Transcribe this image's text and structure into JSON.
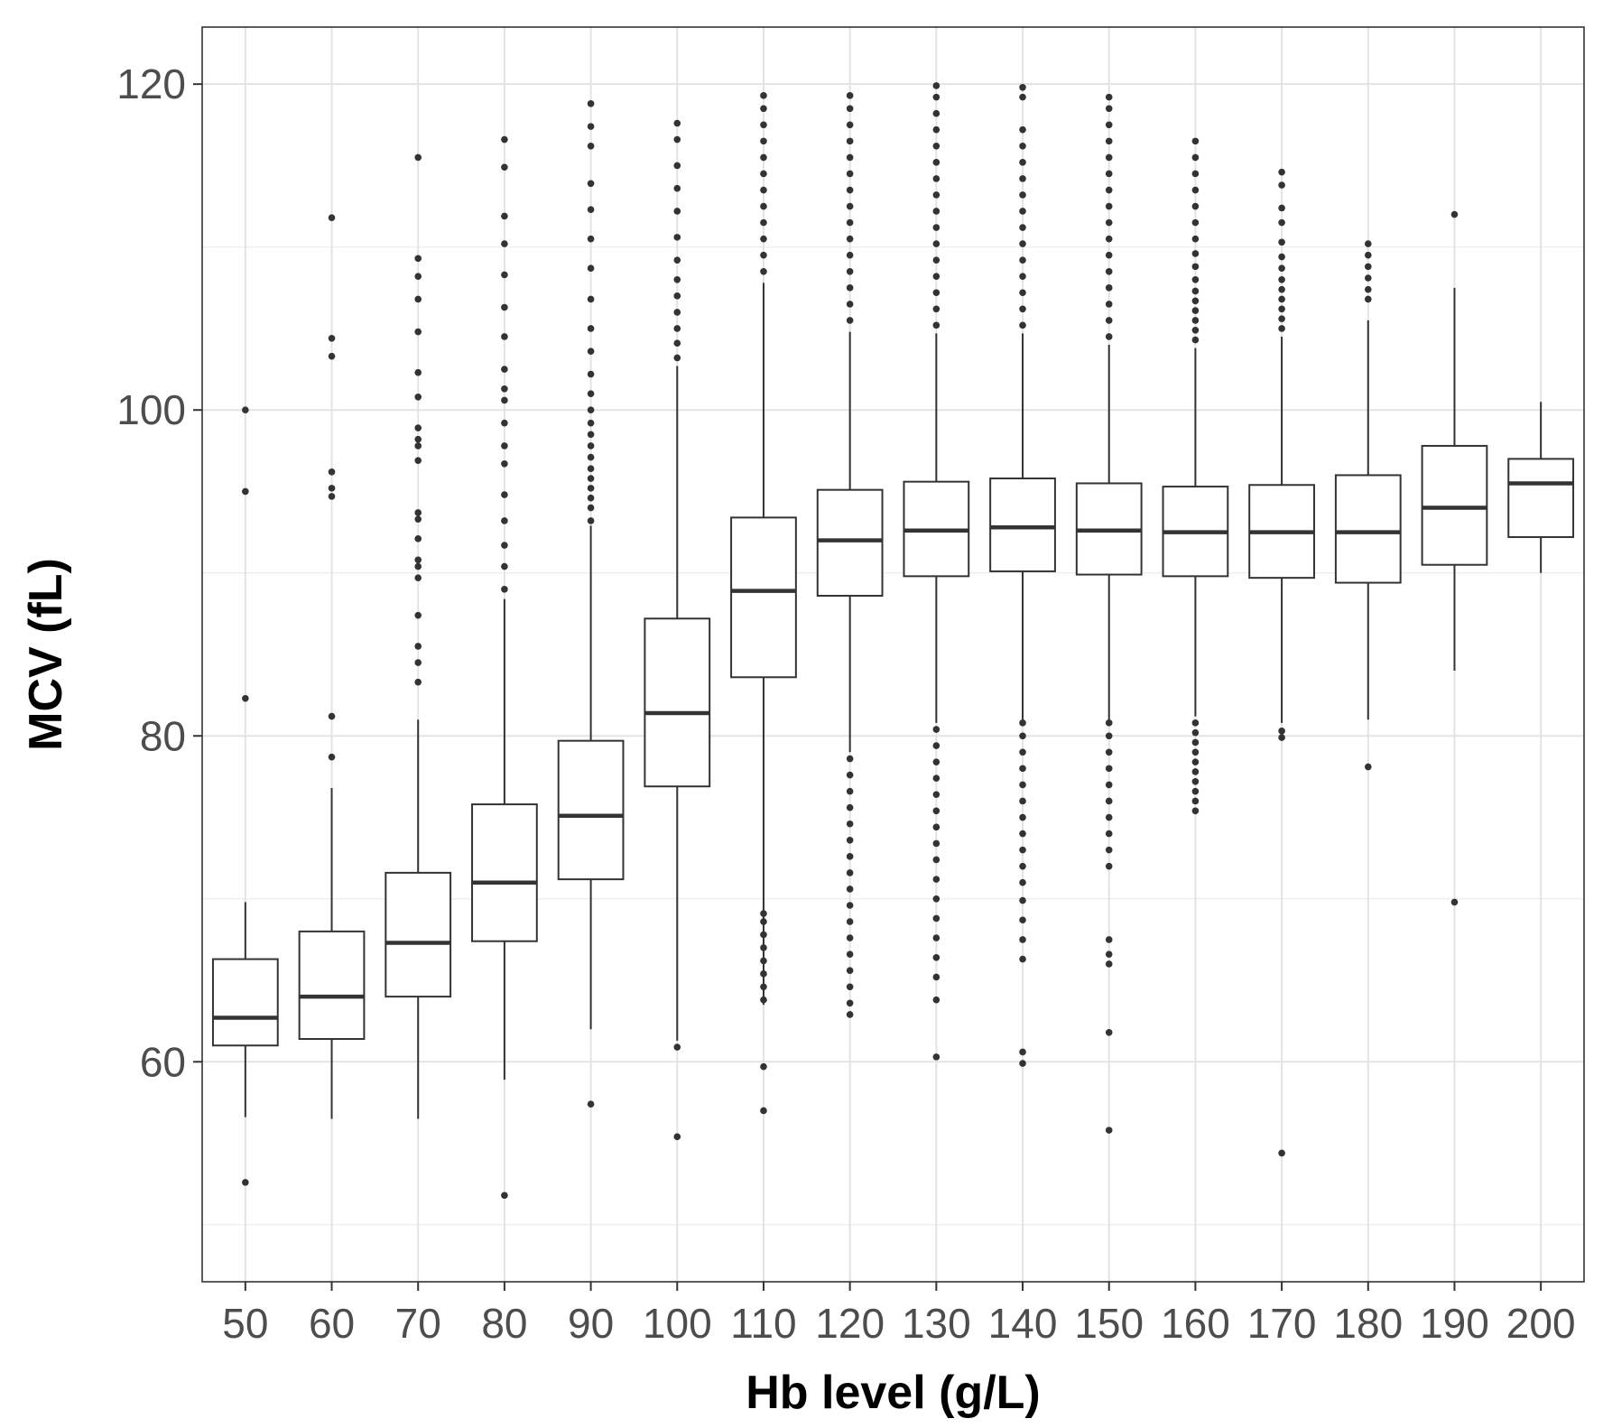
{
  "chart_data": {
    "type": "box",
    "xlabel": "Hb level (g/L)",
    "ylabel": "MCV (fL)",
    "ylim": [
      46.5,
      123.5
    ],
    "yticks": [
      60,
      80,
      100,
      120
    ],
    "grid": true,
    "categories": [
      "50",
      "60",
      "70",
      "80",
      "90",
      "100",
      "110",
      "120",
      "130",
      "140",
      "150",
      "160",
      "170",
      "180",
      "190",
      "200"
    ],
    "boxes": [
      {
        "category": "50",
        "whisker_low": 56.6,
        "q1": 61.0,
        "median": 62.7,
        "q3": 66.3,
        "whisker_high": 69.8,
        "outliers": [
          52.6,
          82.3,
          95.0,
          100.0
        ]
      },
      {
        "category": "60",
        "whisker_low": 56.5,
        "q1": 61.4,
        "median": 64.0,
        "q3": 68.0,
        "whisker_high": 76.8,
        "outliers": [
          78.7,
          81.2,
          94.7,
          95.2,
          96.2,
          103.3,
          104.4,
          111.8
        ]
      },
      {
        "category": "70",
        "whisker_low": 56.5,
        "q1": 64.0,
        "median": 67.3,
        "q3": 71.6,
        "whisker_high": 81.0,
        "outliers": [
          83.3,
          84.5,
          85.5,
          87.4,
          89.7,
          90.4,
          90.8,
          92.1,
          93.3,
          93.7,
          96.9,
          97.8,
          98.2,
          98.9,
          100.8,
          102.3,
          104.8,
          106.8,
          108.2,
          109.3,
          115.5
        ]
      },
      {
        "category": "80",
        "whisker_low": 58.9,
        "q1": 67.4,
        "median": 71.0,
        "q3": 75.8,
        "whisker_high": 88.4,
        "outliers": [
          51.8,
          89.0,
          90.4,
          91.7,
          93.2,
          94.8,
          96.7,
          97.8,
          99.2,
          100.6,
          101.3,
          102.5,
          104.5,
          106.3,
          108.3,
          110.2,
          111.9,
          114.9,
          116.6
        ]
      },
      {
        "category": "90",
        "whisker_low": 62.0,
        "q1": 71.2,
        "median": 75.1,
        "q3": 79.7,
        "whisker_high": 92.9,
        "outliers": [
          57.4,
          93.2,
          94.0,
          94.6,
          95.2,
          95.8,
          96.4,
          97.1,
          97.8,
          98.5,
          99.2,
          100.0,
          101.0,
          102.2,
          103.6,
          105.0,
          106.8,
          108.7,
          110.5,
          112.3,
          113.9,
          116.2,
          117.4,
          118.8
        ]
      },
      {
        "category": "100",
        "whisker_low": 61.3,
        "q1": 76.9,
        "median": 81.4,
        "q3": 87.2,
        "whisker_high": 102.7,
        "outliers": [
          55.4,
          60.9,
          103.2,
          104.1,
          105.0,
          106.0,
          107.0,
          108.0,
          109.2,
          110.6,
          112.2,
          113.6,
          115.0,
          116.6,
          117.6
        ]
      },
      {
        "category": "110",
        "whisker_low": 63.5,
        "q1": 83.6,
        "median": 88.9,
        "q3": 93.4,
        "whisker_high": 107.8,
        "outliers": [
          57.0,
          59.7,
          63.8,
          64.6,
          65.4,
          66.2,
          67.0,
          67.8,
          68.6,
          69.1,
          108.5,
          109.5,
          110.5,
          111.5,
          112.5,
          113.5,
          114.5,
          115.5,
          116.5,
          117.5,
          118.5,
          119.3
        ]
      },
      {
        "category": "120",
        "whisker_low": 79.0,
        "q1": 88.6,
        "median": 92.0,
        "q3": 95.1,
        "whisker_high": 104.8,
        "outliers": [
          62.9,
          63.6,
          64.6,
          65.6,
          66.6,
          67.6,
          68.6,
          69.6,
          70.6,
          71.6,
          72.6,
          73.6,
          74.6,
          75.6,
          76.6,
          77.6,
          78.6,
          105.5,
          106.5,
          107.5,
          108.5,
          109.5,
          110.5,
          111.5,
          112.5,
          113.5,
          114.5,
          115.5,
          116.5,
          117.5,
          118.5,
          119.3
        ]
      },
      {
        "category": "130",
        "whisker_low": 80.8,
        "q1": 89.8,
        "median": 92.6,
        "q3": 95.6,
        "whisker_high": 104.7,
        "outliers": [
          60.3,
          63.8,
          65.2,
          66.4,
          67.6,
          68.8,
          70.0,
          71.2,
          72.4,
          73.4,
          74.4,
          75.4,
          76.4,
          77.4,
          78.4,
          79.4,
          80.4,
          105.2,
          106.2,
          107.2,
          108.2,
          109.2,
          110.2,
          111.2,
          112.2,
          113.2,
          114.2,
          115.2,
          116.2,
          117.2,
          118.2,
          119.2,
          119.9
        ]
      },
      {
        "category": "140",
        "whisker_low": 81.0,
        "q1": 90.1,
        "median": 92.8,
        "q3": 95.8,
        "whisker_high": 104.7,
        "outliers": [
          59.9,
          60.6,
          66.3,
          67.5,
          68.7,
          69.9,
          71.0,
          72.0,
          73.0,
          74.0,
          75.0,
          76.0,
          77.0,
          78.0,
          79.0,
          80.0,
          80.8,
          105.2,
          106.2,
          107.2,
          108.2,
          109.2,
          110.2,
          111.2,
          112.2,
          113.2,
          114.2,
          115.2,
          116.2,
          117.2,
          119.2,
          119.8
        ]
      },
      {
        "category": "150",
        "whisker_low": 81.0,
        "q1": 89.9,
        "median": 92.6,
        "q3": 95.5,
        "whisker_high": 104.0,
        "outliers": [
          55.8,
          61.8,
          66.0,
          66.6,
          67.5,
          72.0,
          73.0,
          74.0,
          75.0,
          76.0,
          77.0,
          78.0,
          79.0,
          80.0,
          80.8,
          104.5,
          105.5,
          106.5,
          107.5,
          108.5,
          109.5,
          110.5,
          111.5,
          112.5,
          113.5,
          114.5,
          115.5,
          116.5,
          117.5,
          118.5,
          119.2
        ]
      },
      {
        "category": "160",
        "whisker_low": 81.2,
        "q1": 89.8,
        "median": 92.5,
        "q3": 95.3,
        "whisker_high": 103.8,
        "outliers": [
          75.4,
          76.0,
          76.6,
          77.2,
          77.8,
          78.4,
          79.0,
          79.6,
          80.2,
          80.8,
          104.3,
          104.9,
          105.5,
          106.1,
          106.7,
          107.3,
          108.0,
          108.8,
          109.6,
          110.5,
          111.5,
          112.5,
          113.5,
          114.5,
          115.5,
          116.5
        ]
      },
      {
        "category": "170",
        "whisker_low": 80.8,
        "q1": 89.7,
        "median": 92.5,
        "q3": 95.4,
        "whisker_high": 104.5,
        "outliers": [
          54.4,
          79.9,
          80.3,
          105.0,
          105.6,
          106.2,
          106.8,
          107.4,
          108.0,
          108.7,
          109.4,
          110.3,
          111.5,
          112.4,
          113.8,
          114.6
        ]
      },
      {
        "category": "180",
        "whisker_low": 81.0,
        "q1": 89.4,
        "median": 92.5,
        "q3": 96.0,
        "whisker_high": 105.5,
        "outliers": [
          78.1,
          106.8,
          107.4,
          108.1,
          108.8,
          109.5,
          110.2
        ]
      },
      {
        "category": "190",
        "whisker_low": 84.0,
        "q1": 90.5,
        "median": 94.0,
        "q3": 97.8,
        "whisker_high": 107.5,
        "outliers": [
          69.8,
          112.0
        ]
      },
      {
        "category": "200",
        "whisker_low": 90.0,
        "q1": 92.2,
        "median": 95.5,
        "q3": 97.0,
        "whisker_high": 100.5,
        "outliers": []
      }
    ]
  }
}
